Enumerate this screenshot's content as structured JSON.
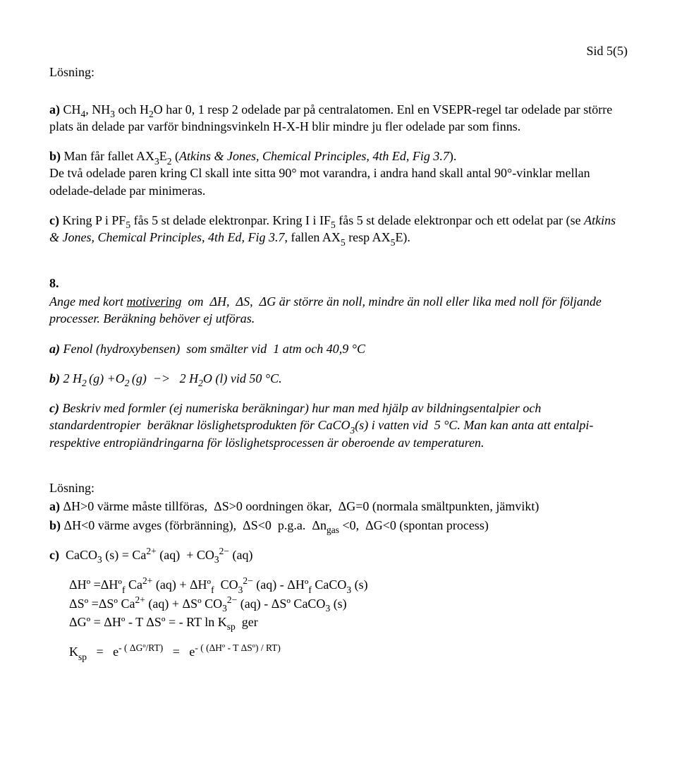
{
  "page_number": "Sid 5(5)",
  "losning_label": "Lösning:",
  "a_text": "a) CH₄, NH₃ och H₂O har 0, 1 resp 2 odelade par på centralatomen. Enl en VSEPR-regel tar odelade par större plats än delade par varför bindningsvinkeln H-X-H blir mindre ju fler odelade par som finns.",
  "b_text_1": "b) Man får fallet AX₃E₂ (",
  "b_italic": "Atkins & Jones, Chemical Principles, 4th Ed, Fig 3.7",
  "b_text_2": "). De två odelade paren kring Cl skall inte sitta 90° mot varandra, i andra hand skall antal 90°-vinklar mellan odelade-delade par minimeras.",
  "c_text_1": "c) Kring P i PF₅ fås 5 st delade elektronpar. Kring I i IF₅ fås 5 st delade elektronpar och ett odelat par (se ",
  "c_italic": "Atkins & Jones, Chemical Principles, 4th Ed, Fig 3.7",
  "c_text_2": ", fallen AX₅ resp AX₅E).",
  "q8_num": "8.",
  "q8_line1a": "Ange med kort ",
  "q8_under": "motivering",
  "q8_line1b": "  om  ΔH,  ΔS,  ΔG är större än noll, mindre än noll eller lika med noll för följande processer. Beräkning behöver ej utföras.",
  "q8a": "a) Fenol (hydroxybensen)  som smälter vid  1 atm och 40,9 °C",
  "q8b_bold": "b)",
  "q8b_rest": " 2 H₂ (g) +O₂ (g)  −>   2 H₂O (l) vid 50 °C.",
  "q8c": "c) Beskriv med formler (ej numeriska beräkningar) hur man med hjälp av bildningsentalpier och standardentropier  beräknar löslighetsprodukten för CaCO₃(s) i vatten vid  5 °C. Man kan anta att entalpi- respektive entropiändringarna för löslighetsprocessen är oberoende av temperaturen.",
  "sol_a": "a) ΔH>0 värme måste tillföras,  ΔS>0 oordningen ökar,  ΔG=0 (normala smältpunkten, jämvikt)",
  "sol_b": "b) ΔH<0 värme avges (förbränning),  ΔS<0  p.g.a.  Δnₐₛ <0,  ΔG<0 (spontan process)",
  "sol_c_eq": "c)  CaCO₃ (s) = Ca²⁺ (aq)  + CO₃²⁻ (aq)",
  "dH_line": "ΔHº =ΔHºf Ca²⁺ (aq) + ΔHºf  CO₃²⁻ (aq) - ΔHºf CaCO₃ (s)",
  "dS_line": "ΔSº =ΔSº Ca²⁺ (aq) + ΔSº CO₃²⁻ (aq) - ΔSº CaCO₃ (s)",
  "dG_line": "ΔGº = ΔHº - T ΔSº = - RT ln Kₛₚ  ger",
  "Ksp_line": "Kₛₚ   =   e⁻⁽ ΔGº/RT⁾   =   e⁻⁽ ⁽ΔHº ⁻ T ΔSº⁾ / RT⁾"
}
